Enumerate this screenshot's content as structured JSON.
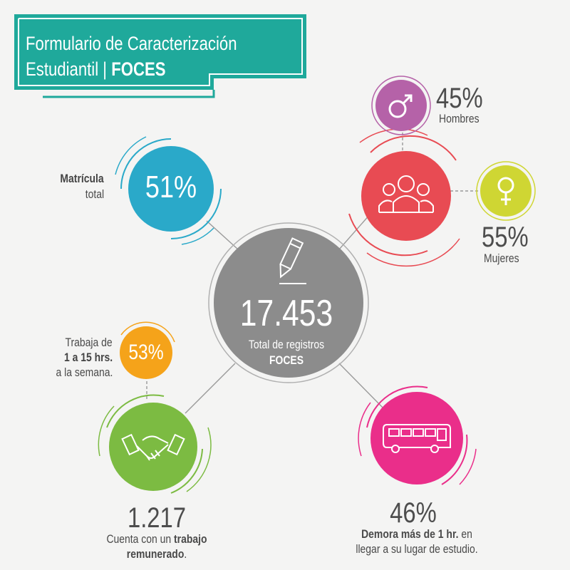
{
  "header": {
    "title_line1": "Formulario de Caracterización",
    "title_line2_prefix": "Estudiantil | ",
    "title_line2_bold": "FOCES"
  },
  "center": {
    "value": "17.453",
    "label_line1": "Total de registros",
    "label_line2": "FOCES",
    "icon": "pencil-icon"
  },
  "enrollment": {
    "value": "51%",
    "label_bold": "Matrícula",
    "label_rest": "total"
  },
  "gender": {
    "icon": "people-group-icon",
    "men": {
      "value": "45%",
      "label": "Hombres",
      "icon": "male-symbol-icon"
    },
    "women": {
      "value": "55%",
      "label": "Mujeres",
      "icon": "female-symbol-icon"
    }
  },
  "work": {
    "icon": "handshake-icon",
    "value": "1.217",
    "label_line1_prefix": "Cuenta con un ",
    "label_line1_bold": "trabajo",
    "label_line2_bold": "remunerado",
    "label_line2_suffix": ".",
    "hours": {
      "value": "53%",
      "line1": "Trabaja de",
      "line2": "1 a 15 hrs.",
      "line3": "a la semana."
    }
  },
  "commute": {
    "icon": "bus-icon",
    "value": "46%",
    "label_line1_bold": "Demora más de 1 hr.",
    "label_line1_suffix": " en",
    "label_line2": "llegar a su lugar de estudio."
  },
  "colors": {
    "teal": "#1fa99b",
    "gray": "#8e8e8e",
    "blue": "#2aa9c9",
    "red": "#e84b53",
    "purple": "#b562a8",
    "yellow": "#cfd633",
    "orange": "#f5a31a",
    "green": "#7cbb42",
    "pink": "#ea2e8a"
  }
}
